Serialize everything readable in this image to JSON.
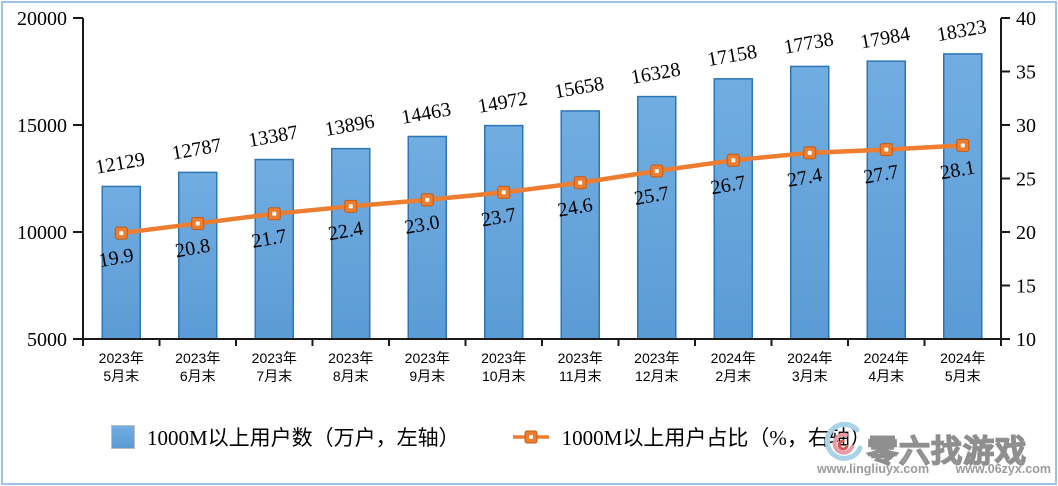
{
  "chart_data": {
    "type": "bar",
    "subtype": "bar-line-dual-axis",
    "categories": [
      "2023年5月末",
      "2023年6月末",
      "2023年7月末",
      "2023年8月末",
      "2023年9月末",
      "2023年10月末",
      "2023年11月末",
      "2023年12月末",
      "2024年2月末",
      "2024年3月末",
      "2024年4月末",
      "2024年5月末"
    ],
    "series": [
      {
        "name": "1000M以上用户数",
        "legend_label": "1000M以上用户数（万户，左轴）",
        "type": "bar",
        "axis": "left",
        "values": [
          12129,
          12787,
          13387,
          13896,
          14463,
          14972,
          15658,
          16328,
          17158,
          17738,
          17984,
          18323
        ]
      },
      {
        "name": "1000M以上用户占比",
        "legend_label": "1000M以上用户占比（%，右轴）",
        "type": "line",
        "axis": "right",
        "values": [
          19.9,
          20.8,
          21.7,
          22.4,
          23.0,
          23.7,
          24.6,
          25.7,
          26.7,
          27.4,
          27.7,
          28.1
        ]
      }
    ],
    "left_axis": {
      "min": 5000,
      "max": 20000,
      "ticks": [
        20000,
        15000,
        10000,
        5000
      ]
    },
    "right_axis": {
      "min": 10,
      "max": 40,
      "ticks": [
        40,
        35,
        30,
        25,
        20,
        15,
        10
      ]
    },
    "title": "",
    "grid": false,
    "legend_position": "bottom",
    "colors": {
      "bar_fill": "#5B9BD5",
      "bar_fill_light": "#71ADE1",
      "bar_border": "#2E75B6",
      "line": "#ED7D31",
      "line_marker_border": "#C55A11",
      "marker_center": "#FFFFFF",
      "axis": "#1A1A1A",
      "frame_border": "#9DC3E6",
      "label": "#000000"
    }
  },
  "watermark": {
    "title": "零六找游戏",
    "url1": "www.lingliuyx.com",
    "url2": "www.06zyx.com"
  }
}
